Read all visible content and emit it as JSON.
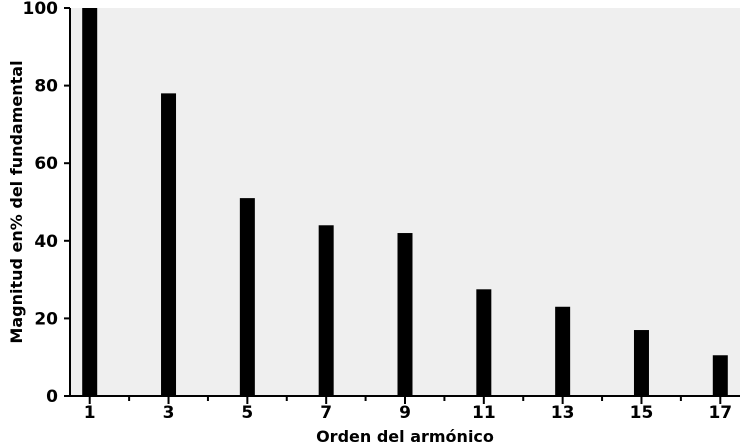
{
  "chart_data": {
    "type": "bar",
    "title": "",
    "xlabel": "Orden del armónico",
    "ylabel": "Magnitud en% del fundamental",
    "categories": [
      "1",
      "3",
      "5",
      "7",
      "9",
      "11",
      "13",
      "15",
      "17"
    ],
    "x": [
      1,
      3,
      5,
      7,
      9,
      11,
      13,
      15,
      17
    ],
    "values": [
      100,
      78,
      51,
      44,
      42,
      27.5,
      23,
      17,
      10.5
    ],
    "ylim": [
      0,
      100
    ],
    "xlim": [
      0.5,
      17.5
    ],
    "yticks": [
      0,
      20,
      40,
      60,
      80,
      100
    ],
    "grid": false,
    "colors": {
      "plot_bg": "#efefef",
      "bar": "#000000",
      "axis": "#000000"
    }
  }
}
